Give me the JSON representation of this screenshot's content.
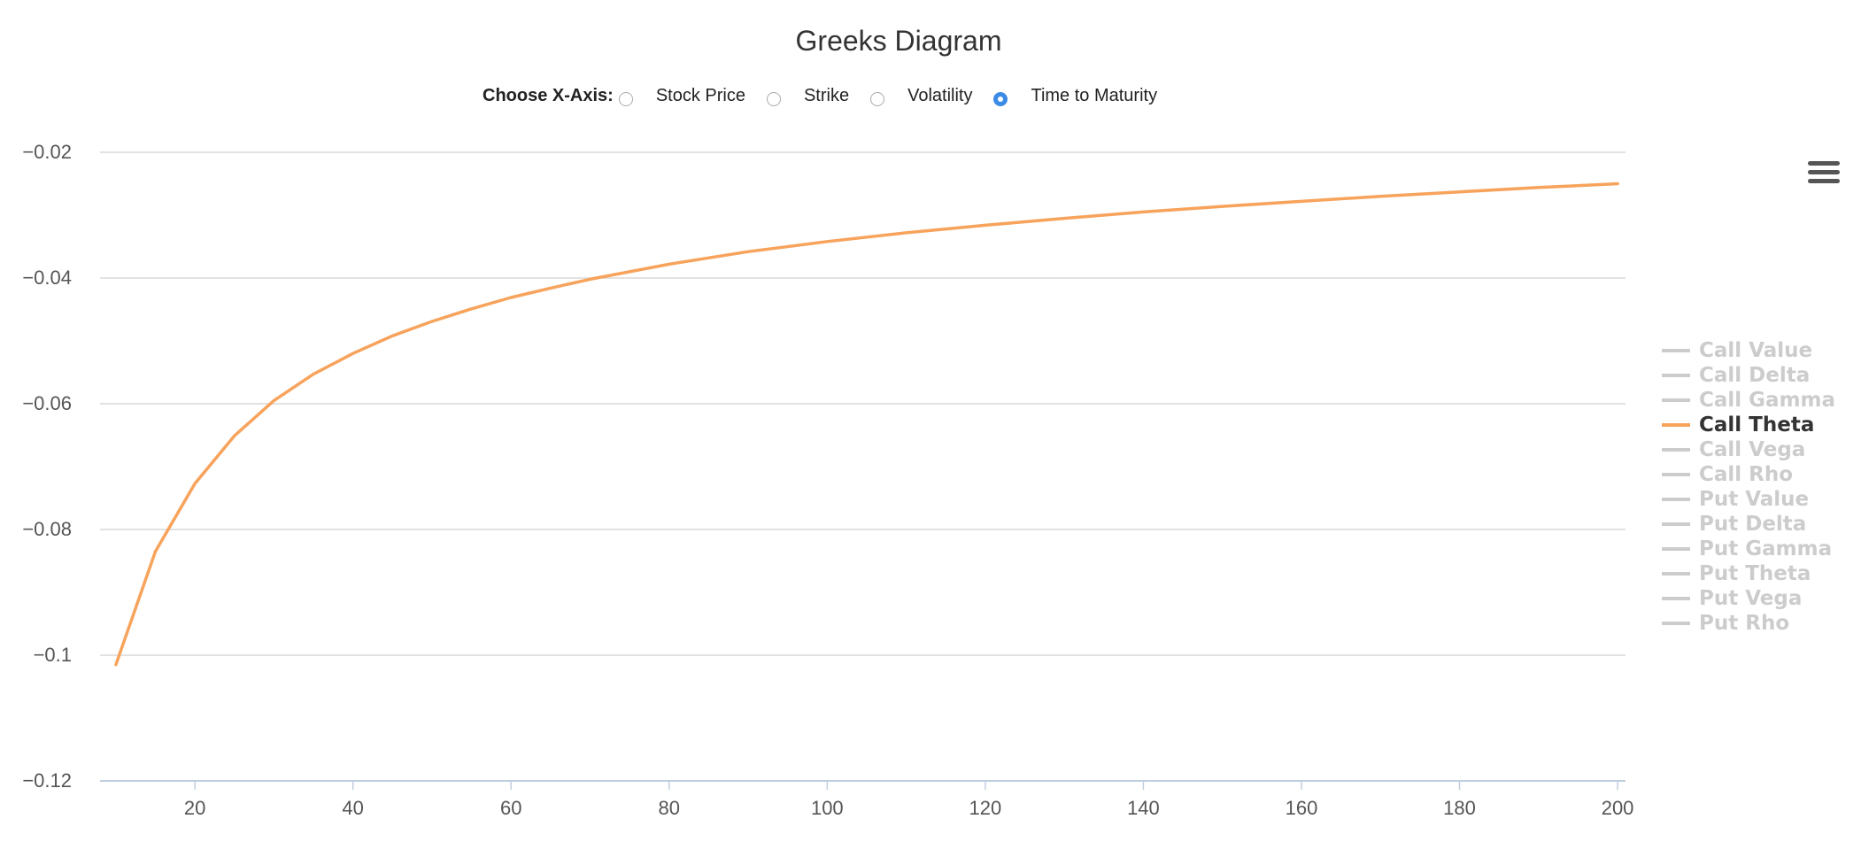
{
  "chart_data": {
    "type": "line",
    "title": "Greeks Diagram",
    "xlabel": "",
    "ylabel": "",
    "xlim": [
      8,
      201
    ],
    "ylim": [
      -0.12,
      -0.02
    ],
    "x_ticks": [
      20,
      40,
      60,
      80,
      100,
      120,
      140,
      160,
      180,
      200
    ],
    "y_ticks": [
      -0.02,
      -0.04,
      -0.06,
      -0.08,
      -0.1,
      -0.12
    ],
    "y_tick_labels": [
      "−0.02",
      "−0.04",
      "−0.06",
      "−0.08",
      "−0.1",
      "−0.12"
    ],
    "grid": true,
    "legend_position": "right",
    "series": [
      {
        "name": "Call Theta",
        "color": "#f7a35c",
        "visible": true,
        "x": [
          10,
          15,
          20,
          25,
          30,
          35,
          40,
          45,
          50,
          55,
          60,
          65,
          70,
          80,
          90,
          100,
          110,
          120,
          130,
          140,
          150,
          160,
          170,
          180,
          190,
          200
        ],
        "y": [
          -0.1015,
          -0.0835,
          -0.0727,
          -0.0651,
          -0.0595,
          -0.0553,
          -0.052,
          -0.0492,
          -0.0469,
          -0.0449,
          -0.0431,
          -0.0416,
          -0.0402,
          -0.0378,
          -0.0358,
          -0.0342,
          -0.0328,
          -0.0316,
          -0.0305,
          -0.0295,
          -0.0286,
          -0.0278,
          -0.027,
          -0.0263,
          -0.0256,
          -0.025
        ]
      }
    ]
  },
  "controls": {
    "axis_label": "Choose X-Axis:",
    "options": [
      {
        "label": "Stock Price",
        "checked": false
      },
      {
        "label": "Strike",
        "checked": false
      },
      {
        "label": "Volatility",
        "checked": false
      },
      {
        "label": "Time to Maturity",
        "checked": true
      }
    ]
  },
  "legend": [
    {
      "label": "Call Value",
      "active": false
    },
    {
      "label": "Call Delta",
      "active": false
    },
    {
      "label": "Call Gamma",
      "active": false
    },
    {
      "label": "Call Theta",
      "active": true
    },
    {
      "label": "Call Vega",
      "active": false
    },
    {
      "label": "Call Rho",
      "active": false
    },
    {
      "label": "Put Value",
      "active": false
    },
    {
      "label": "Put Delta",
      "active": false
    },
    {
      "label": "Put Gamma",
      "active": false
    },
    {
      "label": "Put Theta",
      "active": false
    },
    {
      "label": "Put Vega",
      "active": false
    },
    {
      "label": "Put Rho",
      "active": false
    }
  ],
  "menu_icon": "hamburger-menu-icon",
  "colors": {
    "accent": "#3b8be6",
    "series": "#f7a35c",
    "inactive_legend": "#cccccc",
    "grid": "#d8d8d8"
  }
}
